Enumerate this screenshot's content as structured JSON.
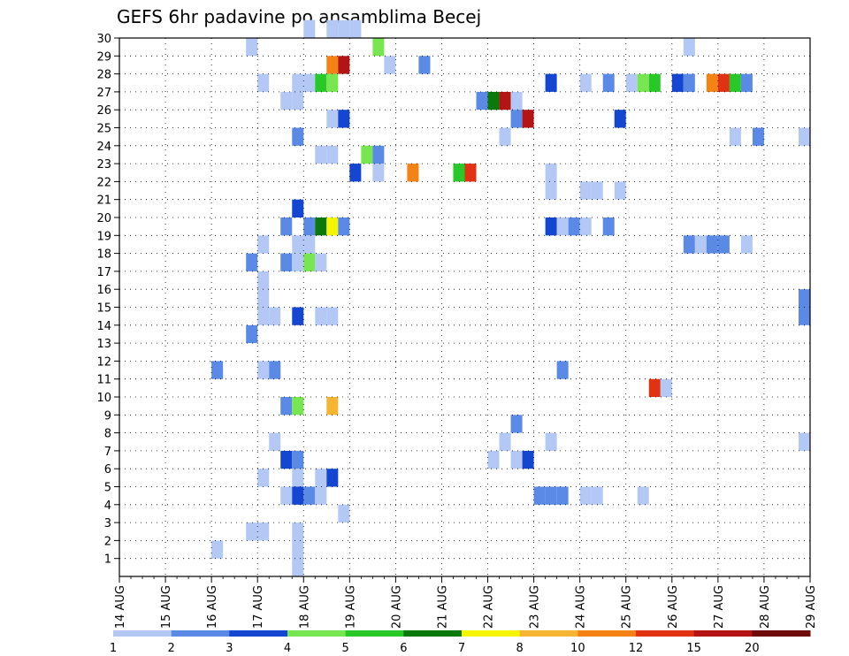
{
  "chart_data": {
    "type": "heatmap",
    "title": "GEFS 6hr padavine po ansamblima Becej",
    "xlabel": "",
    "ylabel": "",
    "x_ticks": [
      "14 AUG",
      "15 AUG",
      "16 AUG",
      "17 AUG",
      "18 AUG",
      "19 AUG",
      "20 AUG",
      "21 AUG",
      "22 AUG",
      "23 AUG",
      "24 AUG",
      "25 AUG",
      "26 AUG",
      "27 AUG",
      "28 AUG",
      "29 AUG"
    ],
    "x_range": [
      "14 AUG 00Z",
      "29 AUG 00Z"
    ],
    "y_range": [
      0,
      30
    ],
    "y_ticks": [
      1,
      2,
      3,
      4,
      5,
      6,
      7,
      8,
      9,
      10,
      11,
      12,
      13,
      14,
      15,
      16,
      17,
      18,
      19,
      20,
      21,
      22,
      23,
      24,
      25,
      26,
      27,
      28,
      29,
      30
    ],
    "grid": true,
    "colorbar": {
      "labels": [
        "1",
        "2",
        "3",
        "4",
        "5",
        "6",
        "7",
        "8",
        "10",
        "12",
        "15",
        "20"
      ],
      "colors": [
        "#b4c8f5",
        "#5a8ae6",
        "#1446d2",
        "#78e650",
        "#28c828",
        "#0a780a",
        "#f5f500",
        "#f5b432",
        "#f58214",
        "#e13214",
        "#b41414",
        "#6e0a0a"
      ]
    },
    "cells_note": "each cell: [member (y), day index from 14 AUG in 6-hour steps (x), color class 1-12]",
    "cells": [
      [
        30,
        16,
        1
      ],
      [
        30,
        18,
        1
      ],
      [
        30,
        19,
        1
      ],
      [
        30,
        20,
        1
      ],
      [
        29,
        11,
        1
      ],
      [
        29,
        22,
        4
      ],
      [
        29,
        49,
        1
      ],
      [
        28,
        18,
        9
      ],
      [
        28,
        19,
        11
      ],
      [
        28,
        23,
        1
      ],
      [
        28,
        26,
        2
      ],
      [
        27,
        12,
        1
      ],
      [
        27,
        15,
        1
      ],
      [
        27,
        16,
        1
      ],
      [
        27,
        17,
        5
      ],
      [
        27,
        18,
        4
      ],
      [
        27,
        37,
        3
      ],
      [
        27,
        40,
        1
      ],
      [
        27,
        42,
        2
      ],
      [
        27,
        44,
        1
      ],
      [
        27,
        45,
        4
      ],
      [
        27,
        46,
        5
      ],
      [
        27,
        48,
        3
      ],
      [
        27,
        49,
        2
      ],
      [
        27,
        51,
        9
      ],
      [
        27,
        52,
        10
      ],
      [
        27,
        53,
        5
      ],
      [
        27,
        54,
        2
      ],
      [
        26,
        14,
        1
      ],
      [
        26,
        15,
        1
      ],
      [
        26,
        31,
        2
      ],
      [
        26,
        32,
        6
      ],
      [
        26,
        33,
        11
      ],
      [
        26,
        34,
        1
      ],
      [
        25,
        18,
        1
      ],
      [
        25,
        19,
        3
      ],
      [
        25,
        34,
        2
      ],
      [
        25,
        35,
        11
      ],
      [
        25,
        43,
        3
      ],
      [
        24,
        15,
        2
      ],
      [
        24,
        33,
        1
      ],
      [
        24,
        53,
        1
      ],
      [
        24,
        55,
        2
      ],
      [
        24,
        59,
        1
      ],
      [
        23,
        17,
        1
      ],
      [
        23,
        18,
        1
      ],
      [
        23,
        21,
        4
      ],
      [
        23,
        22,
        2
      ],
      [
        22,
        20,
        3
      ],
      [
        22,
        22,
        1
      ],
      [
        22,
        25,
        9
      ],
      [
        22,
        29,
        5
      ],
      [
        22,
        30,
        10
      ],
      [
        22,
        37,
        1
      ],
      [
        21,
        37,
        1
      ],
      [
        21,
        40,
        1
      ],
      [
        21,
        41,
        1
      ],
      [
        21,
        43,
        1
      ],
      [
        20,
        15,
        3
      ],
      [
        19,
        14,
        2
      ],
      [
        19,
        16,
        2
      ],
      [
        19,
        17,
        6
      ],
      [
        19,
        18,
        7
      ],
      [
        19,
        19,
        2
      ],
      [
        19,
        37,
        3
      ],
      [
        19,
        38,
        1
      ],
      [
        19,
        39,
        2
      ],
      [
        19,
        40,
        1
      ],
      [
        19,
        42,
        2
      ],
      [
        18,
        12,
        1
      ],
      [
        18,
        15,
        1
      ],
      [
        18,
        16,
        1
      ],
      [
        18,
        49,
        2
      ],
      [
        18,
        50,
        1
      ],
      [
        18,
        51,
        2
      ],
      [
        18,
        52,
        2
      ],
      [
        18,
        54,
        1
      ],
      [
        17,
        11,
        2
      ],
      [
        17,
        14,
        2
      ],
      [
        17,
        15,
        1
      ],
      [
        17,
        16,
        4
      ],
      [
        17,
        17,
        1
      ],
      [
        16,
        12,
        1
      ],
      [
        15,
        12,
        1
      ],
      [
        15,
        59,
        2
      ],
      [
        14,
        12,
        1
      ],
      [
        14,
        13,
        1
      ],
      [
        14,
        15,
        3
      ],
      [
        14,
        17,
        1
      ],
      [
        14,
        18,
        1
      ],
      [
        14,
        59,
        2
      ],
      [
        13,
        11,
        2
      ],
      [
        11,
        8,
        2
      ],
      [
        11,
        12,
        1
      ],
      [
        11,
        13,
        2
      ],
      [
        11,
        38,
        2
      ],
      [
        10,
        46,
        10
      ],
      [
        10,
        47,
        1
      ],
      [
        9,
        14,
        2
      ],
      [
        9,
        15,
        4
      ],
      [
        9,
        18,
        8
      ],
      [
        8,
        34,
        2
      ],
      [
        7,
        13,
        1
      ],
      [
        7,
        33,
        1
      ],
      [
        7,
        37,
        1
      ],
      [
        7,
        59,
        1
      ],
      [
        6,
        14,
        3
      ],
      [
        6,
        15,
        2
      ],
      [
        6,
        32,
        1
      ],
      [
        6,
        34,
        1
      ],
      [
        6,
        35,
        3
      ],
      [
        5,
        12,
        1
      ],
      [
        5,
        15,
        1
      ],
      [
        5,
        17,
        1
      ],
      [
        5,
        18,
        3
      ],
      [
        4,
        14,
        1
      ],
      [
        4,
        15,
        3
      ],
      [
        4,
        16,
        2
      ],
      [
        4,
        17,
        1
      ],
      [
        4,
        36,
        2
      ],
      [
        4,
        37,
        2
      ],
      [
        4,
        38,
        2
      ],
      [
        4,
        40,
        1
      ],
      [
        4,
        41,
        1
      ],
      [
        4,
        45,
        1
      ],
      [
        3,
        19,
        1
      ],
      [
        2,
        11,
        1
      ],
      [
        2,
        12,
        1
      ],
      [
        2,
        15,
        1
      ],
      [
        1,
        8,
        1
      ],
      [
        1,
        15,
        1
      ],
      [
        0,
        15,
        1
      ]
    ]
  }
}
